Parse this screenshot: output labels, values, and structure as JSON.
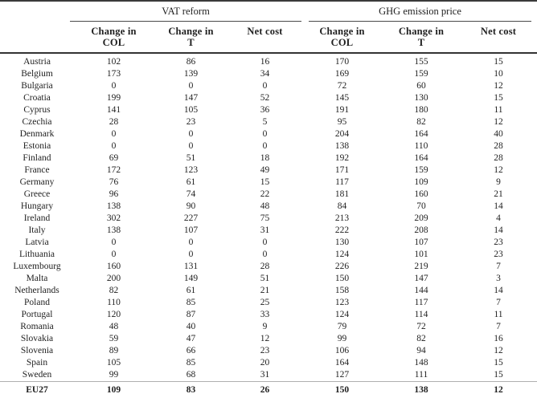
{
  "table": {
    "corner_label": "",
    "groups": [
      {
        "label": "VAT reform"
      },
      {
        "label": "GHG emission price"
      }
    ],
    "sub_headers": [
      {
        "line1": "Change in",
        "line2": "COL"
      },
      {
        "line1": "Change in",
        "line2": "T"
      },
      {
        "line1": "Net cost",
        "line2": ""
      },
      {
        "line1": "Change in",
        "line2": "COL"
      },
      {
        "line1": "Change in",
        "line2": "T"
      },
      {
        "line1": "Net cost",
        "line2": ""
      }
    ],
    "rows": [
      {
        "country": "Austria",
        "vat": [
          "102",
          "86",
          "16"
        ],
        "ghg": [
          "170",
          "155",
          "15"
        ]
      },
      {
        "country": "Belgium",
        "vat": [
          "173",
          "139",
          "34"
        ],
        "ghg": [
          "169",
          "159",
          "10"
        ]
      },
      {
        "country": "Bulgaria",
        "vat": [
          "0",
          "0",
          "0"
        ],
        "ghg": [
          "72",
          "60",
          "12"
        ]
      },
      {
        "country": "Croatia",
        "vat": [
          "199",
          "147",
          "52"
        ],
        "ghg": [
          "145",
          "130",
          "15"
        ]
      },
      {
        "country": "Cyprus",
        "vat": [
          "141",
          "105",
          "36"
        ],
        "ghg": [
          "191",
          "180",
          "11"
        ]
      },
      {
        "country": "Czechia",
        "vat": [
          "28",
          "23",
          "5"
        ],
        "ghg": [
          "95",
          "82",
          "12"
        ]
      },
      {
        "country": "Denmark",
        "vat": [
          "0",
          "0",
          "0"
        ],
        "ghg": [
          "204",
          "164",
          "40"
        ]
      },
      {
        "country": "Estonia",
        "vat": [
          "0",
          "0",
          "0"
        ],
        "ghg": [
          "138",
          "110",
          "28"
        ]
      },
      {
        "country": "Finland",
        "vat": [
          "69",
          "51",
          "18"
        ],
        "ghg": [
          "192",
          "164",
          "28"
        ]
      },
      {
        "country": "France",
        "vat": [
          "172",
          "123",
          "49"
        ],
        "ghg": [
          "171",
          "159",
          "12"
        ]
      },
      {
        "country": "Germany",
        "vat": [
          "76",
          "61",
          "15"
        ],
        "ghg": [
          "117",
          "109",
          "9"
        ]
      },
      {
        "country": "Greece",
        "vat": [
          "96",
          "74",
          "22"
        ],
        "ghg": [
          "181",
          "160",
          "21"
        ]
      },
      {
        "country": "Hungary",
        "vat": [
          "138",
          "90",
          "48"
        ],
        "ghg": [
          "84",
          "70",
          "14"
        ]
      },
      {
        "country": "Ireland",
        "vat": [
          "302",
          "227",
          "75"
        ],
        "ghg": [
          "213",
          "209",
          "4"
        ]
      },
      {
        "country": "Italy",
        "vat": [
          "138",
          "107",
          "31"
        ],
        "ghg": [
          "222",
          "208",
          "14"
        ]
      },
      {
        "country": "Latvia",
        "vat": [
          "0",
          "0",
          "0"
        ],
        "ghg": [
          "130",
          "107",
          "23"
        ]
      },
      {
        "country": "Lithuania",
        "vat": [
          "0",
          "0",
          "0"
        ],
        "ghg": [
          "124",
          "101",
          "23"
        ]
      },
      {
        "country": "Luxembourg",
        "vat": [
          "160",
          "131",
          "28"
        ],
        "ghg": [
          "226",
          "219",
          "7"
        ]
      },
      {
        "country": "Malta",
        "vat": [
          "200",
          "149",
          "51"
        ],
        "ghg": [
          "150",
          "147",
          "3"
        ]
      },
      {
        "country": "Netherlands",
        "vat": [
          "82",
          "61",
          "21"
        ],
        "ghg": [
          "158",
          "144",
          "14"
        ]
      },
      {
        "country": "Poland",
        "vat": [
          "110",
          "85",
          "25"
        ],
        "ghg": [
          "123",
          "117",
          "7"
        ]
      },
      {
        "country": "Portugal",
        "vat": [
          "120",
          "87",
          "33"
        ],
        "ghg": [
          "124",
          "114",
          "11"
        ]
      },
      {
        "country": "Romania",
        "vat": [
          "48",
          "40",
          "9"
        ],
        "ghg": [
          "79",
          "72",
          "7"
        ]
      },
      {
        "country": "Slovakia",
        "vat": [
          "59",
          "47",
          "12"
        ],
        "ghg": [
          "99",
          "82",
          "16"
        ]
      },
      {
        "country": "Slovenia",
        "vat": [
          "89",
          "66",
          "23"
        ],
        "ghg": [
          "106",
          "94",
          "12"
        ]
      },
      {
        "country": "Spain",
        "vat": [
          "105",
          "85",
          "20"
        ],
        "ghg": [
          "164",
          "148",
          "15"
        ]
      },
      {
        "country": "Sweden",
        "vat": [
          "99",
          "68",
          "31"
        ],
        "ghg": [
          "127",
          "111",
          "15"
        ]
      }
    ],
    "total_row": {
      "country": "EU27",
      "vat": [
        "109",
        "83",
        "26"
      ],
      "ghg": [
        "150",
        "138",
        "12"
      ]
    }
  }
}
